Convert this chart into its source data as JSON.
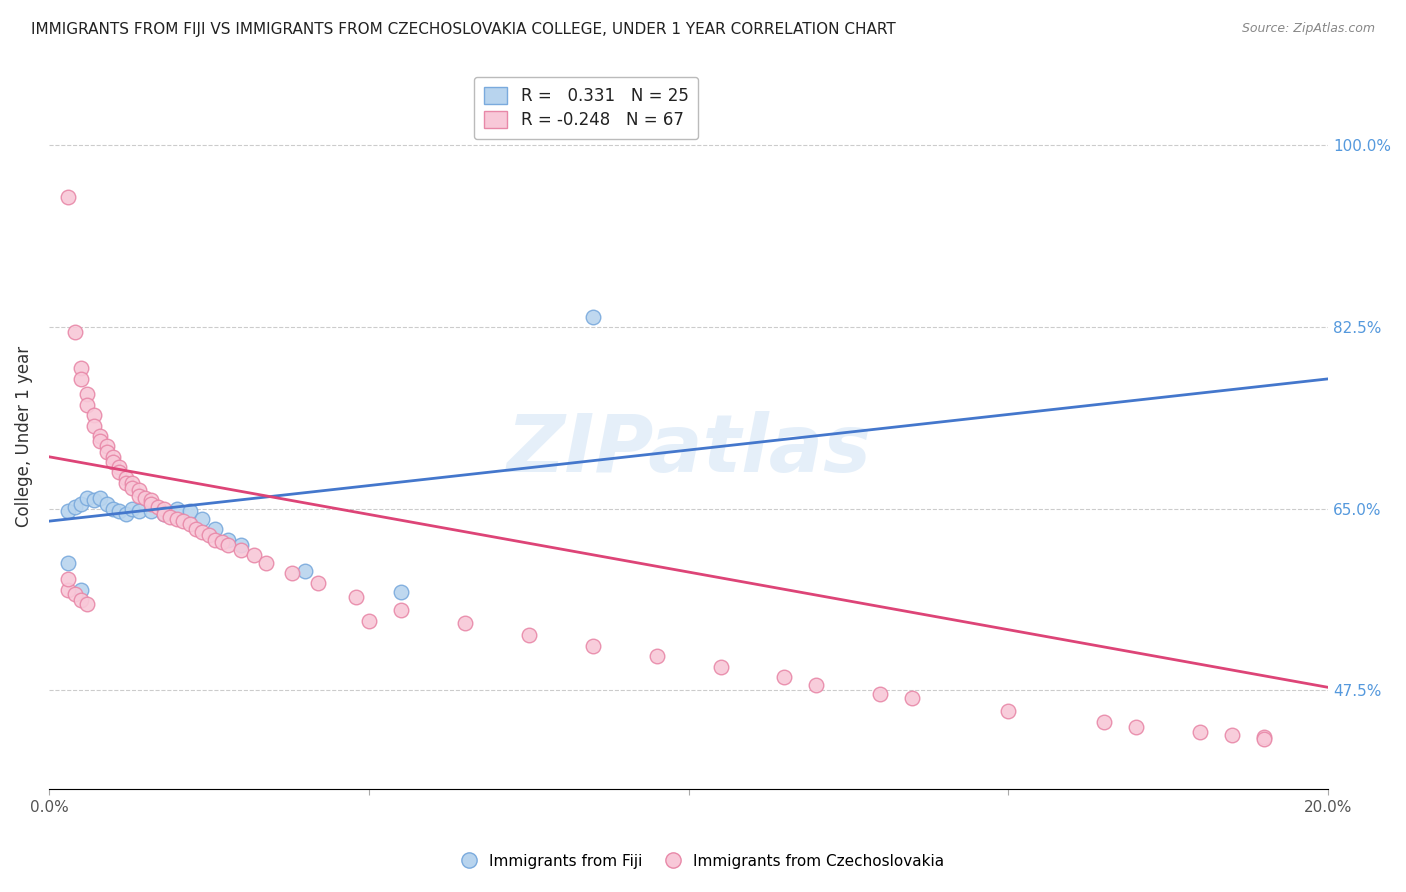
{
  "title": "IMMIGRANTS FROM FIJI VS IMMIGRANTS FROM CZECHOSLOVAKIA COLLEGE, UNDER 1 YEAR CORRELATION CHART",
  "source": "Source: ZipAtlas.com",
  "ylabel": "College, Under 1 year",
  "yticks": [
    0.475,
    0.65,
    0.825,
    1.0
  ],
  "ytick_labels": [
    "47.5%",
    "65.0%",
    "82.5%",
    "100.0%"
  ],
  "xlim": [
    0.0,
    0.2
  ],
  "ylim": [
    0.38,
    1.06
  ],
  "fiji_color": "#b8d4ee",
  "fiji_edge_color": "#7aaadd",
  "czecho_color": "#f8c8d8",
  "czecho_edge_color": "#e888a8",
  "line_fiji_color": "#4477cc",
  "line_czecho_color": "#dd4477",
  "fiji_R": 0.331,
  "fiji_N": 25,
  "czecho_R": -0.248,
  "czecho_N": 67,
  "watermark": "ZIPatlas",
  "fiji_line_x": [
    0.0,
    0.2
  ],
  "fiji_line_y": [
    0.638,
    0.775
  ],
  "czecho_line_x": [
    0.0,
    0.2
  ],
  "czecho_line_y": [
    0.7,
    0.478
  ],
  "fiji_x": [
    0.003,
    0.004,
    0.005,
    0.006,
    0.007,
    0.008,
    0.009,
    0.01,
    0.011,
    0.012,
    0.013,
    0.014,
    0.016,
    0.018,
    0.02,
    0.022,
    0.024,
    0.026,
    0.028,
    0.03,
    0.04,
    0.055,
    0.085,
    0.003,
    0.005
  ],
  "fiji_y": [
    0.648,
    0.652,
    0.655,
    0.66,
    0.658,
    0.66,
    0.655,
    0.65,
    0.648,
    0.645,
    0.65,
    0.648,
    0.648,
    0.645,
    0.65,
    0.648,
    0.64,
    0.63,
    0.62,
    0.615,
    0.59,
    0.57,
    0.835,
    0.598,
    0.572
  ],
  "czecho_x": [
    0.003,
    0.004,
    0.005,
    0.005,
    0.006,
    0.006,
    0.007,
    0.007,
    0.008,
    0.008,
    0.009,
    0.009,
    0.01,
    0.01,
    0.011,
    0.011,
    0.012,
    0.012,
    0.013,
    0.013,
    0.014,
    0.014,
    0.015,
    0.016,
    0.016,
    0.017,
    0.018,
    0.018,
    0.019,
    0.02,
    0.021,
    0.022,
    0.023,
    0.024,
    0.025,
    0.026,
    0.027,
    0.028,
    0.03,
    0.032,
    0.034,
    0.038,
    0.042,
    0.048,
    0.055,
    0.065,
    0.075,
    0.085,
    0.095,
    0.105,
    0.115,
    0.13,
    0.15,
    0.165,
    0.18,
    0.19,
    0.003,
    0.004,
    0.005,
    0.006,
    0.05,
    0.12,
    0.135,
    0.17,
    0.185,
    0.19,
    0.003
  ],
  "czecho_y": [
    0.95,
    0.82,
    0.785,
    0.775,
    0.76,
    0.75,
    0.74,
    0.73,
    0.72,
    0.715,
    0.71,
    0.705,
    0.7,
    0.695,
    0.69,
    0.685,
    0.68,
    0.675,
    0.675,
    0.67,
    0.668,
    0.662,
    0.66,
    0.658,
    0.655,
    0.652,
    0.65,
    0.645,
    0.642,
    0.64,
    0.638,
    0.635,
    0.63,
    0.628,
    0.625,
    0.62,
    0.618,
    0.615,
    0.61,
    0.605,
    0.598,
    0.588,
    0.578,
    0.565,
    0.552,
    0.54,
    0.528,
    0.518,
    0.508,
    0.498,
    0.488,
    0.472,
    0.455,
    0.445,
    0.435,
    0.43,
    0.572,
    0.568,
    0.562,
    0.558,
    0.542,
    0.48,
    0.468,
    0.44,
    0.432,
    0.428,
    0.582
  ]
}
